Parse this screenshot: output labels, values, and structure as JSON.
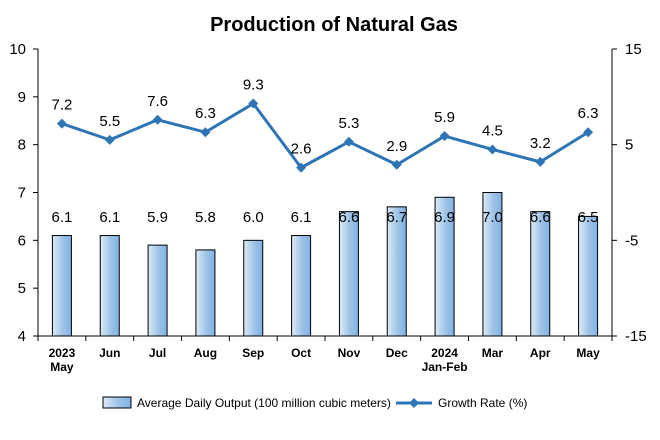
{
  "chart_data": {
    "type": "bar",
    "title": "Production of Natural Gas",
    "categories": [
      [
        "2023",
        "May"
      ],
      [
        "Jun"
      ],
      [
        "Jul"
      ],
      [
        "Aug"
      ],
      [
        "Sep"
      ],
      [
        "Oct"
      ],
      [
        "Nov"
      ],
      [
        "Dec"
      ],
      [
        "2024",
        "Jan-Feb"
      ],
      [
        "Mar"
      ],
      [
        "Apr"
      ],
      [
        "May"
      ]
    ],
    "series": [
      {
        "name": "Average Daily Output (100 million cubic meters)",
        "type": "bar",
        "axis": "left",
        "values": [
          6.1,
          6.1,
          5.9,
          5.8,
          6.0,
          6.1,
          6.6,
          6.7,
          6.9,
          7.0,
          6.6,
          6.5
        ],
        "labels": [
          "6.1",
          "6.1",
          "5.9",
          "5.8",
          "6.0",
          "6.1",
          "6.6",
          "6.7",
          "6.9",
          "7.0",
          "6.6",
          "6.5"
        ],
        "color": "#9DC3E6",
        "gradient_light": "#DDEBF7",
        "gradient_dark": "#7FB2E5",
        "border": "#000000"
      },
      {
        "name": "Growth Rate (%)",
        "type": "line",
        "axis": "right",
        "values": [
          7.2,
          5.5,
          7.6,
          6.3,
          9.3,
          2.6,
          5.3,
          2.9,
          5.9,
          4.5,
          3.2,
          6.3
        ],
        "labels": [
          "7.2",
          "5.5",
          "7.6",
          "6.3",
          "9.3",
          "2.6",
          "5.3",
          "2.9",
          "5.9",
          "4.5",
          "3.2",
          "6.3"
        ],
        "color": "#2E75B6",
        "marker": "diamond"
      }
    ],
    "y_left": {
      "min": 4,
      "max": 10,
      "ticks": [
        "4",
        "5",
        "6",
        "7",
        "8",
        "9",
        "10"
      ]
    },
    "y_right": {
      "min": -15,
      "max": 15,
      "ticks": [
        "-15",
        "-5",
        "5",
        "15"
      ]
    },
    "grid": false,
    "legend_position": "bottom"
  }
}
